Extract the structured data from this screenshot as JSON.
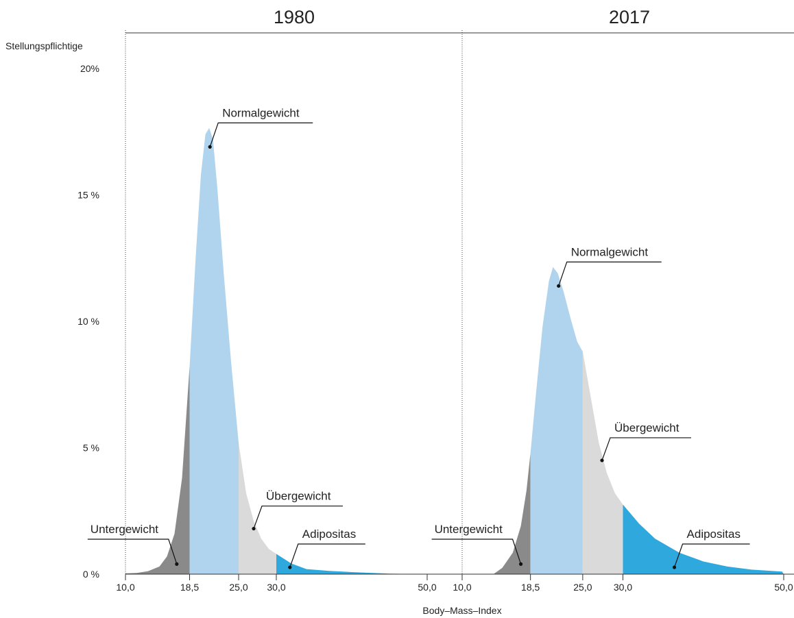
{
  "chart_data": {
    "type": "area",
    "ylabel": "Stellungspflichtige",
    "xlabel": "Body–Mass–Index",
    "y_ticks": [
      "20%",
      "15 %",
      "10 %",
      "5 %",
      "0 %"
    ],
    "y_tick_values": [
      20,
      15,
      10,
      5,
      0
    ],
    "ylim": [
      0,
      20
    ],
    "colors": {
      "Untergewicht": "#8a8a8a",
      "Normalgewicht": "#b0d4ee",
      "Übergewicht": "#dadada",
      "Adipositas": "#2fa8dd"
    },
    "panels": [
      {
        "title": "1980",
        "x_ticks": [
          "10,0",
          "18,5",
          "25,0",
          "30,0",
          "50,0"
        ],
        "x_tick_values": [
          10,
          18.5,
          25,
          30,
          50
        ],
        "xlim": [
          10,
          50
        ],
        "category_bounds": [
          18.5,
          25,
          30
        ],
        "categories": [
          "Untergewicht",
          "Normalgewicht",
          "Übergewicht",
          "Adipositas"
        ],
        "curve": [
          {
            "x": 10,
            "y": 0.03
          },
          {
            "x": 11.5,
            "y": 0.05
          },
          {
            "x": 13,
            "y": 0.12
          },
          {
            "x": 14.5,
            "y": 0.3
          },
          {
            "x": 15.5,
            "y": 0.7
          },
          {
            "x": 16.5,
            "y": 1.6
          },
          {
            "x": 17.5,
            "y": 3.8
          },
          {
            "x": 18.5,
            "y": 8.2
          },
          {
            "x": 19.3,
            "y": 12.5
          },
          {
            "x": 20,
            "y": 15.8
          },
          {
            "x": 20.6,
            "y": 17.4
          },
          {
            "x": 21.1,
            "y": 17.65
          },
          {
            "x": 21.6,
            "y": 17.2
          },
          {
            "x": 22.2,
            "y": 15.2
          },
          {
            "x": 23,
            "y": 12
          },
          {
            "x": 24,
            "y": 8.4
          },
          {
            "x": 25,
            "y": 5.2
          },
          {
            "x": 26,
            "y": 3.2
          },
          {
            "x": 27,
            "y": 2.1
          },
          {
            "x": 28,
            "y": 1.4
          },
          {
            "x": 29,
            "y": 1.0
          },
          {
            "x": 30,
            "y": 0.8
          },
          {
            "x": 32,
            "y": 0.42
          },
          {
            "x": 34,
            "y": 0.2
          },
          {
            "x": 37,
            "y": 0.13
          },
          {
            "x": 40,
            "y": 0.08
          },
          {
            "x": 45,
            "y": 0.02
          },
          {
            "x": 50,
            "y": 0.0
          }
        ],
        "annotations": [
          {
            "label": "Normalgewicht",
            "x": 21.2,
            "y": 16.9
          },
          {
            "label": "Übergewicht",
            "x": 27.0,
            "y": 1.8
          },
          {
            "label": "Untergewicht",
            "x": 16.8,
            "y": 0.4
          },
          {
            "label": "Adipositas",
            "x": 31.8,
            "y": 0.27
          }
        ]
      },
      {
        "title": "2017",
        "x_ticks": [
          "10,0",
          "18,5",
          "25,0",
          "30,0",
          "50,0"
        ],
        "x_tick_values": [
          10,
          18.5,
          25,
          30,
          50
        ],
        "xlim": [
          10,
          50
        ],
        "category_bounds": [
          18.5,
          25,
          30
        ],
        "categories": [
          "Untergewicht",
          "Normalgewicht",
          "Übergewicht",
          "Adipositas"
        ],
        "curve": [
          {
            "x": 10,
            "y": 0.0
          },
          {
            "x": 13.9,
            "y": 0.0
          },
          {
            "x": 15,
            "y": 0.25
          },
          {
            "x": 16.3,
            "y": 0.85
          },
          {
            "x": 17.3,
            "y": 1.9
          },
          {
            "x": 18,
            "y": 3.3
          },
          {
            "x": 18.5,
            "y": 4.8
          },
          {
            "x": 19.2,
            "y": 7.2
          },
          {
            "x": 20,
            "y": 9.8
          },
          {
            "x": 20.8,
            "y": 11.6
          },
          {
            "x": 21.3,
            "y": 12.15
          },
          {
            "x": 21.9,
            "y": 11.9
          },
          {
            "x": 22.6,
            "y": 11.2
          },
          {
            "x": 23.5,
            "y": 10.1
          },
          {
            "x": 24.3,
            "y": 9.2
          },
          {
            "x": 25,
            "y": 8.8
          },
          {
            "x": 26,
            "y": 7.0
          },
          {
            "x": 27,
            "y": 5.2
          },
          {
            "x": 28,
            "y": 4.0
          },
          {
            "x": 29,
            "y": 3.2
          },
          {
            "x": 30,
            "y": 2.75
          },
          {
            "x": 32,
            "y": 2.0
          },
          {
            "x": 34,
            "y": 1.4
          },
          {
            "x": 37,
            "y": 0.85
          },
          {
            "x": 40,
            "y": 0.5
          },
          {
            "x": 43,
            "y": 0.3
          },
          {
            "x": 46,
            "y": 0.18
          },
          {
            "x": 49.8,
            "y": 0.1
          },
          {
            "x": 50,
            "y": 0.0
          }
        ],
        "annotations": [
          {
            "label": "Normalgewicht",
            "x": 22.0,
            "y": 11.4
          },
          {
            "label": "Übergewicht",
            "x": 27.4,
            "y": 4.5
          },
          {
            "label": "Untergewicht",
            "x": 17.3,
            "y": 0.4
          },
          {
            "label": "Adipositas",
            "x": 36.4,
            "y": 0.27
          }
        ]
      }
    ]
  }
}
